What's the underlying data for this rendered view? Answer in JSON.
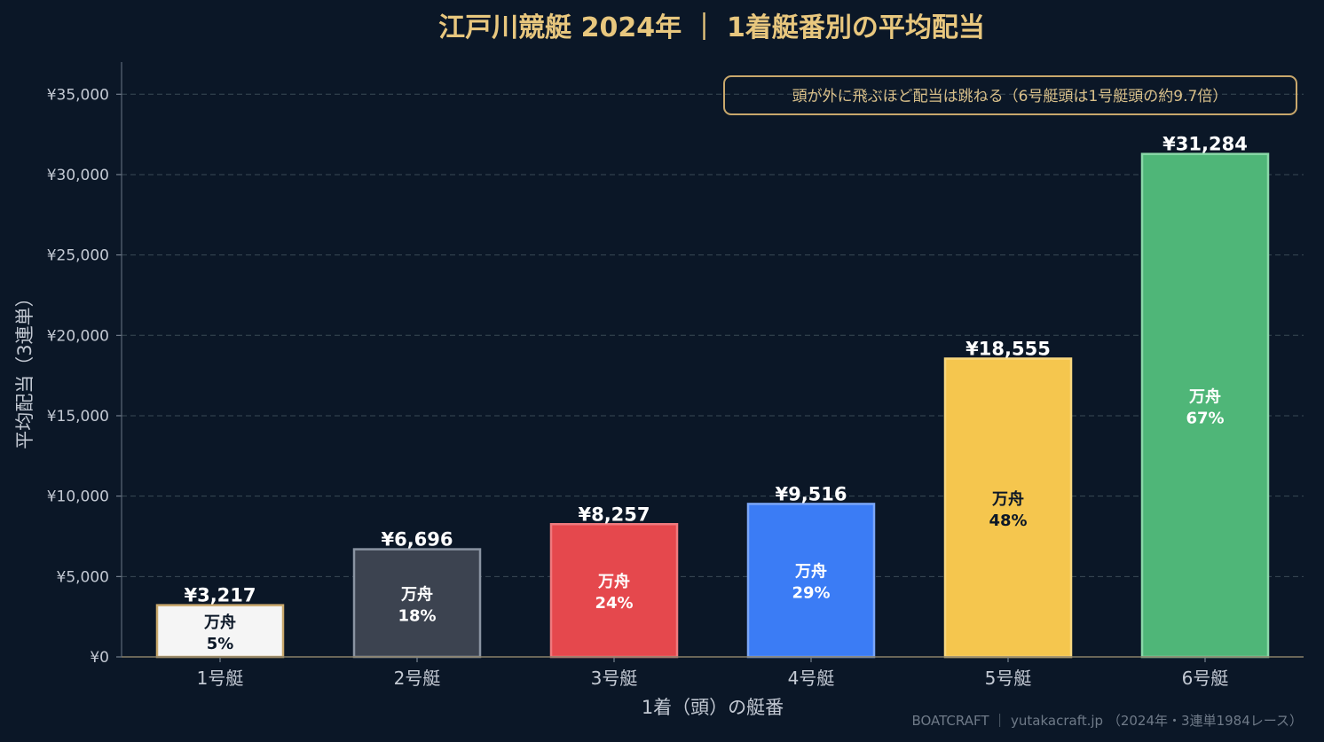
{
  "title": "江戸川競艇 2024年 ｜ 1着艇番別の平均配当",
  "annotation": "頭が外に飛ぶほど配当は跳ねる（6号艇頭は1号艇頭の約9.7倍）",
  "footer": "BOATCRAFT ｜ yutakacraft.jp （2024年・3連単1984レース）",
  "colors": {
    "background": "#0b1727",
    "title": "#e8c77e",
    "axis_text": "#c3c9d3",
    "grid": "#3a4a55",
    "annotation_border": "#c9a86c",
    "annotation_text": "#d9c08a",
    "footer_text": "#6f7a88"
  },
  "chart_data": {
    "type": "bar",
    "title": "江戸川競艇 2024年 ｜ 1着艇番別の平均配当",
    "xlabel": "1着（頭）の艇番",
    "ylabel": "平均配当（3連単）",
    "ylim": [
      0,
      37000
    ],
    "yticks": [
      0,
      5000,
      10000,
      15000,
      20000,
      25000,
      30000,
      35000
    ],
    "ytick_labels": [
      "¥0",
      "¥5,000",
      "¥10,000",
      "¥15,000",
      "¥20,000",
      "¥25,000",
      "¥30,000",
      "¥35,000"
    ],
    "grid": true,
    "categories": [
      "1号艇",
      "2号艇",
      "3号艇",
      "4号艇",
      "5号艇",
      "6号艇"
    ],
    "values": [
      3217,
      6696,
      8257,
      9516,
      18555,
      31284
    ],
    "value_labels": [
      "¥3,217",
      "¥6,696",
      "¥8,257",
      "¥9,516",
      "¥18,555",
      "¥31,284"
    ],
    "inner_label_title": "万舟",
    "inner_labels": [
      "5%",
      "18%",
      "24%",
      "29%",
      "48%",
      "67%"
    ],
    "bar_colors": [
      "#f5f5f5",
      "#3c4350",
      "#e5484d",
      "#3b7cf5",
      "#f5c64e",
      "#4fb678"
    ],
    "bar_edge_colors": [
      "#c9a86c",
      "#8a94a2",
      "#f07a7e",
      "#7aa6f8",
      "#f8d77e",
      "#8ad8a8"
    ],
    "inner_text_colors": [
      "#0b1727",
      "#ffffff",
      "#ffffff",
      "#ffffff",
      "#0b1727",
      "#ffffff"
    ]
  }
}
